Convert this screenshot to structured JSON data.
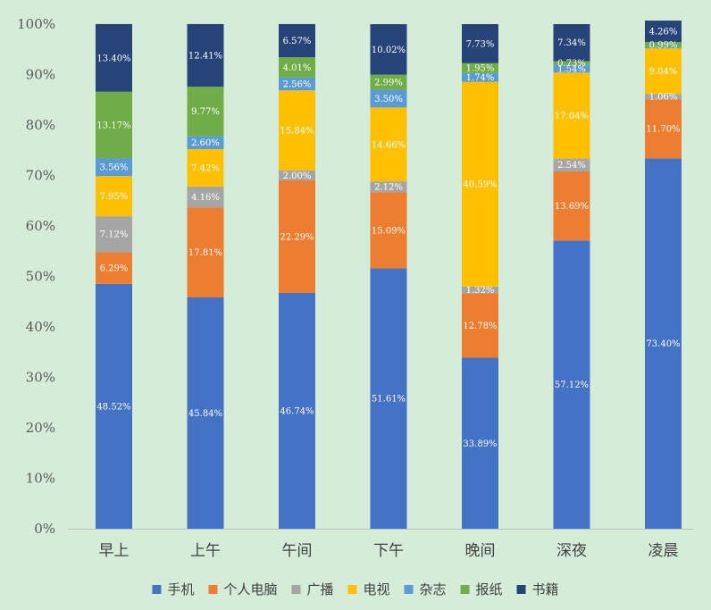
{
  "chart_data": {
    "type": "bar",
    "stacked": true,
    "percent": true,
    "title": "",
    "xlabel": "",
    "ylabel": "",
    "ylim": [
      0,
      100
    ],
    "yticks": [
      "0%",
      "10%",
      "20%",
      "30%",
      "40%",
      "50%",
      "60%",
      "70%",
      "80%",
      "90%",
      "100%"
    ],
    "grid": false,
    "legend_position": "bottom",
    "categories": [
      "早上",
      "上午",
      "午间",
      "下午",
      "晚间",
      "深夜",
      "凌晨"
    ],
    "series": [
      {
        "name": "手机",
        "color": "#4472c4",
        "values": [
          48.52,
          45.84,
          46.74,
          51.61,
          33.89,
          57.12,
          73.4
        ],
        "labels": [
          "48.52%",
          "45.84%",
          "46.74%",
          "51.61%",
          "33.89%",
          "57.12%",
          "73.40%"
        ]
      },
      {
        "name": "个人电脑",
        "color": "#ed7d31",
        "values": [
          6.29,
          17.81,
          22.29,
          15.09,
          12.78,
          13.69,
          11.7
        ],
        "labels": [
          "6.29%",
          "17.81%",
          "22.29%",
          "15.09%",
          "12.78%",
          "13.69%",
          "11.70%"
        ]
      },
      {
        "name": "广播",
        "color": "#a5a5a5",
        "values": [
          7.12,
          4.16,
          2.0,
          2.12,
          1.32,
          2.54,
          1.06
        ],
        "labels": [
          "7.12%",
          "4.16%",
          "2.00%",
          "2.12%",
          "1.32%",
          "2.54%",
          "1.06%"
        ]
      },
      {
        "name": "电视",
        "color": "#ffc000",
        "values": [
          7.95,
          7.42,
          15.84,
          14.66,
          40.59,
          17.04,
          9.04
        ],
        "labels": [
          "7.95%",
          "7.42%",
          "15.84%",
          "14.66%",
          "40.59%",
          "17.04%",
          "9.04%"
        ]
      },
      {
        "name": "杂志",
        "color": "#5b9bd5",
        "values": [
          3.56,
          2.6,
          2.56,
          3.5,
          1.74,
          1.54,
          0.25
        ],
        "labels": [
          "3.56%",
          "2.60%",
          "2.56%",
          "3.50%",
          "1.74%",
          "1.54%",
          ""
        ]
      },
      {
        "name": "报纸",
        "color": "#70ad47",
        "values": [
          13.17,
          9.77,
          4.01,
          2.99,
          1.95,
          0.73,
          0.99
        ],
        "labels": [
          "13.17%",
          "9.77%",
          "4.01%",
          "2.99%",
          "1.95%",
          "0.73%",
          "0.99%"
        ]
      },
      {
        "name": "书籍",
        "color": "#264478",
        "values": [
          13.4,
          12.41,
          6.57,
          10.02,
          7.73,
          7.34,
          4.26
        ],
        "labels": [
          "13.40%",
          "12.41%",
          "6.57%",
          "10.02%",
          "7.73%",
          "7.34%",
          "4.26%"
        ]
      }
    ]
  }
}
